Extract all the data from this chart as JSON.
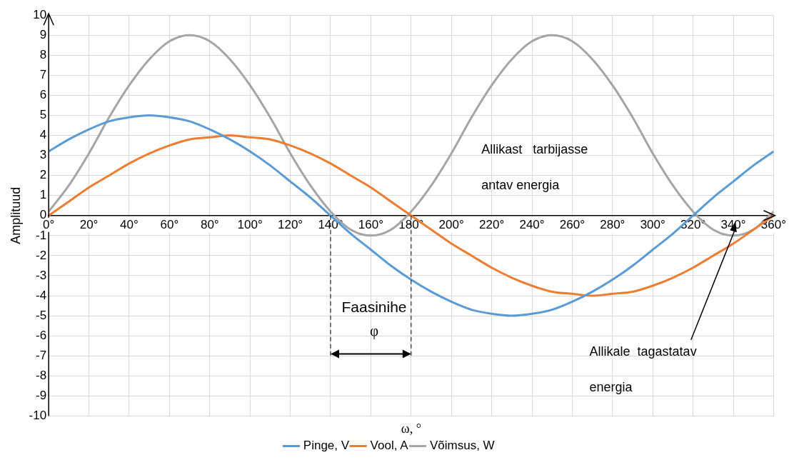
{
  "chart_data": {
    "type": "line",
    "xlabel": "ω, °",
    "ylabel": "Amplituud",
    "x": [
      0,
      10,
      20,
      30,
      40,
      50,
      60,
      70,
      80,
      90,
      100,
      110,
      120,
      130,
      140,
      150,
      160,
      170,
      180,
      190,
      200,
      210,
      220,
      230,
      240,
      250,
      260,
      270,
      280,
      290,
      300,
      310,
      320,
      330,
      340,
      350,
      360
    ],
    "series": [
      {
        "name": "Pinge, V",
        "color": "#5b9bd5",
        "values": [
          3.2,
          3.8,
          4.3,
          4.7,
          4.9,
          5,
          4.9,
          4.7,
          4.3,
          3.8,
          3.2,
          2.5,
          1.7,
          0.9,
          0,
          -0.9,
          -1.7,
          -2.5,
          -3.2,
          -3.8,
          -4.3,
          -4.7,
          -4.9,
          -5,
          -4.9,
          -4.7,
          -4.3,
          -3.8,
          -3.2,
          -2.5,
          -1.7,
          -0.9,
          0,
          0.9,
          1.7,
          2.5,
          3.2
        ]
      },
      {
        "name": "Vool, A",
        "color": "#ed7d31",
        "values": [
          0,
          0.7,
          1.4,
          2,
          2.6,
          3.1,
          3.5,
          3.8,
          3.9,
          4,
          3.9,
          3.8,
          3.5,
          3.1,
          2.6,
          2,
          1.4,
          0.7,
          0,
          -0.7,
          -1.4,
          -2,
          -2.6,
          -3.1,
          -3.5,
          -3.8,
          -3.9,
          -4,
          -3.9,
          -3.8,
          -3.5,
          -3.1,
          -2.6,
          -2,
          -1.4,
          -0.7,
          0
        ]
      },
      {
        "name": "Võimsus, W",
        "color": "#a5a5a5",
        "values": [
          0.2,
          1.5,
          3.1,
          4.9,
          6.5,
          7.8,
          8.7,
          9,
          8.7,
          7.8,
          6.5,
          4.9,
          3.1,
          1.5,
          0.2,
          -0.7,
          -1,
          -0.7,
          0.2,
          1.5,
          3.1,
          4.9,
          6.5,
          7.8,
          8.7,
          9,
          8.7,
          7.8,
          6.5,
          4.9,
          3.1,
          1.5,
          0.2,
          -0.7,
          -1,
          -0.7,
          0.2
        ]
      }
    ],
    "xlim": [
      0,
      360
    ],
    "xticks": [
      {
        "value": 0,
        "label": "0°"
      },
      {
        "value": 20,
        "label": "20°"
      },
      {
        "value": 40,
        "label": "40°"
      },
      {
        "value": 60,
        "label": "60°"
      },
      {
        "value": 80,
        "label": "80°"
      },
      {
        "value": 100,
        "label": "100°"
      },
      {
        "value": 120,
        "label": "120°"
      },
      {
        "value": 140,
        "label": "140°"
      },
      {
        "value": 160,
        "label": "160°"
      },
      {
        "value": 180,
        "label": "180°"
      },
      {
        "value": 200,
        "label": "200°"
      },
      {
        "value": 220,
        "label": "220°"
      },
      {
        "value": 240,
        "label": "240°"
      },
      {
        "value": 260,
        "label": "260°"
      },
      {
        "value": 280,
        "label": "280°"
      },
      {
        "value": 300,
        "label": "300°"
      },
      {
        "value": 320,
        "label": "320°"
      },
      {
        "value": 340,
        "label": "340°"
      },
      {
        "value": 360,
        "label": "360°"
      }
    ],
    "ylim": [
      -10,
      10
    ],
    "yticks": [
      -10,
      -9,
      -8,
      -7,
      -6,
      -5,
      -4,
      -3,
      -2,
      -1,
      0,
      1,
      2,
      3,
      4,
      5,
      6,
      7,
      8,
      9,
      10
    ],
    "grid": true,
    "legend": "bottom",
    "marker": "none",
    "line_style": "solid",
    "ref_lines": [
      {
        "axis": "x",
        "value": 140,
        "line_style": "dashed",
        "color": "#000000"
      },
      {
        "axis": "x",
        "value": 180,
        "line_style": "dashed",
        "color": "#000000"
      }
    ],
    "annotations": [
      "Allikast   tarbijasse",
      "antav energia",
      "Allikale  tagastatav",
      "energia",
      "Faasinihe",
      "φ"
    ]
  }
}
